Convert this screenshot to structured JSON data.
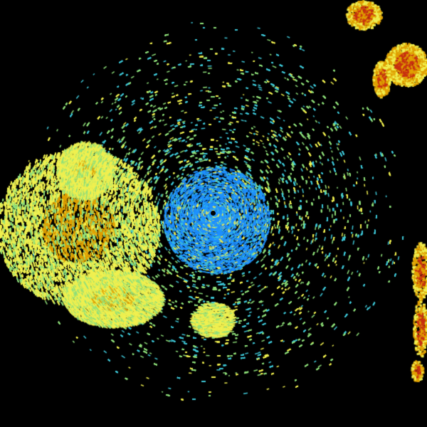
{
  "image": {
    "kind": "weather-radar-reflectivity",
    "background": "#000000",
    "palette": {
      "light_blue": "#1e90ff",
      "cyan": "#3fc8d8",
      "green": "#8fe07a",
      "yellow": "#f0f050",
      "orange": "#e0a000",
      "red": "#c83010"
    },
    "features": [
      {
        "name": "clear-air-echo-center",
        "color": "light_blue"
      },
      {
        "name": "precipitation-mass-west",
        "color": "yellow"
      },
      {
        "name": "storm-cells-northeast",
        "color": "red"
      },
      {
        "name": "storm-cells-east",
        "color": "orange"
      }
    ]
  }
}
